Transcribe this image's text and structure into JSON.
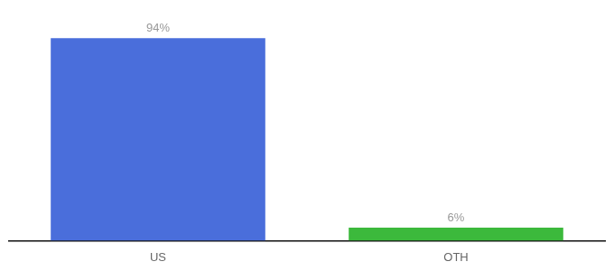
{
  "chart_data": {
    "type": "bar",
    "categories": [
      "US",
      "OTH"
    ],
    "values": [
      94,
      6
    ],
    "colors": [
      "#4a6edb",
      "#3cb93c"
    ],
    "value_labels": [
      "94%",
      "6%"
    ],
    "data_labels": true,
    "ylim": [
      0,
      100
    ],
    "grid": false,
    "tick_labels": "x"
  }
}
